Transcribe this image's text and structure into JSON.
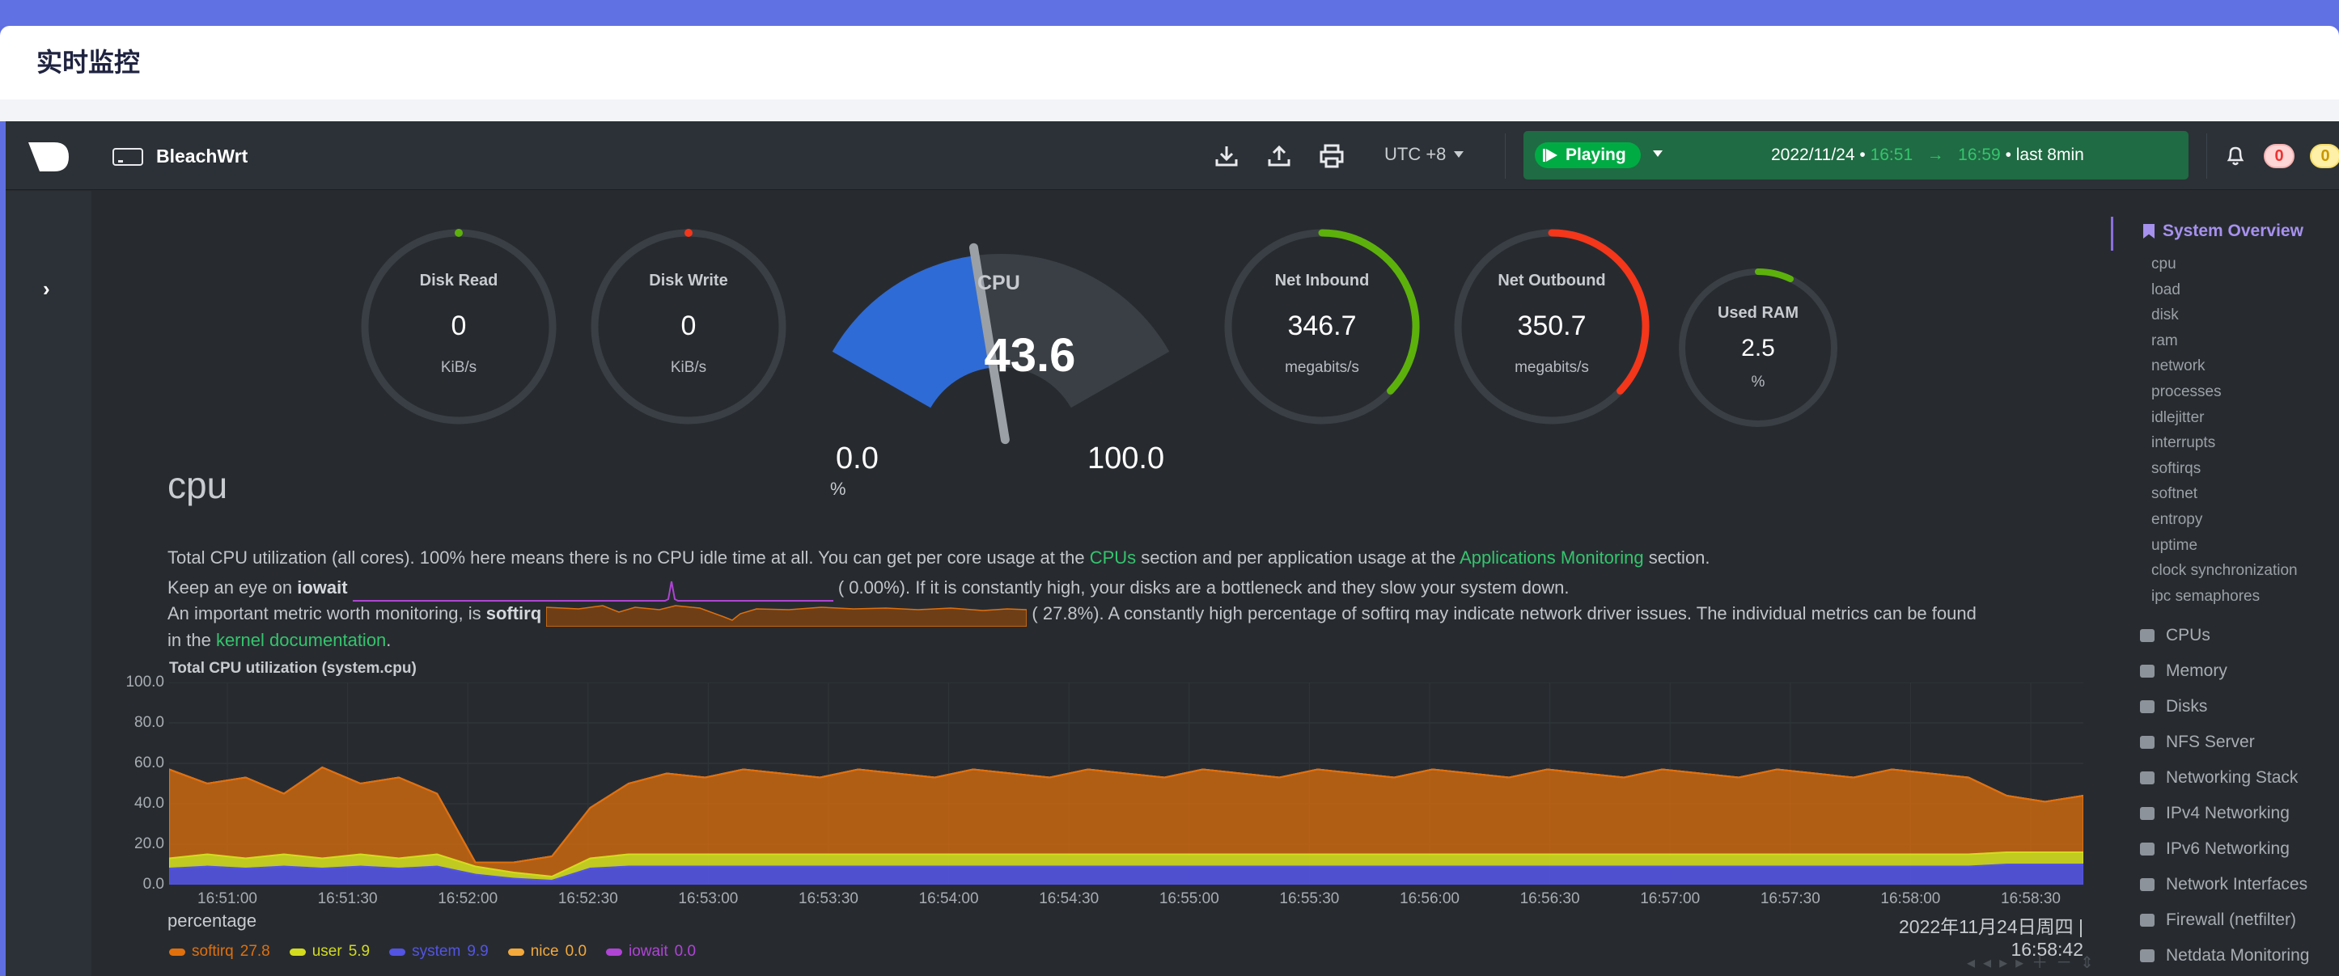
{
  "page": {
    "title": "实时监控"
  },
  "topbar": {
    "hostname": "BleachWrt",
    "timezone": "UTC +8",
    "play_label": "Playing",
    "date": "2022/11/24",
    "time_from": "16:51",
    "time_to": "16:59",
    "period": "• last 8min",
    "alerts_critical": "0",
    "alerts_warning": "0"
  },
  "gauges": {
    "disk_read": {
      "label": "Disk Read",
      "value": "0",
      "unit": "KiB/s",
      "fraction": 0
    },
    "disk_write": {
      "label": "Disk Write",
      "value": "0",
      "unit": "KiB/s",
      "fraction": 0
    },
    "cpu": {
      "label": "CPU",
      "value": "43.6",
      "min": "0.0",
      "max": "100.0",
      "unit": "%",
      "fraction": 0.436
    },
    "net_inbound": {
      "label": "Net Inbound",
      "value": "346.7",
      "unit": "megabits/s",
      "fraction": 0.37
    },
    "net_outbound": {
      "label": "Net Outbound",
      "value": "350.7",
      "unit": "megabits/s",
      "fraction": 0.37
    },
    "used_ram": {
      "label": "Used RAM",
      "value": "2.5",
      "unit": "%",
      "fraction": 0.025
    }
  },
  "colors": {
    "softirq": "#e0700c",
    "user": "#d3db1f",
    "system": "#5354e2",
    "nice": "#f3a93b",
    "iowait": "#b044d5",
    "accent": "#35c46d",
    "cpu_gauge": "#2f6bd6",
    "net_in": "#5db10b",
    "net_out": "#f4361a"
  },
  "section": {
    "title": "cpu",
    "p1_a": "Total CPU utilization (all cores). 100% here means there is no CPU idle time at all. You can get per core usage at the ",
    "p1_link1": "CPUs",
    "p1_b": " section and per application usage at the ",
    "p1_link2": "Applications Monitoring",
    "p1_c": " section.",
    "p2_a": "Keep an eye on ",
    "p2_b": "iowait",
    "p2_val": "(      0.00%). If it is constantly high, your disks are a bottleneck and they slow your system down.",
    "p3_a": "An important metric worth monitoring, is ",
    "p3_b": "softirq",
    "p3_val": "(      27.8%). A constantly high percentage of softirq may indicate network driver issues. The individual metrics can be found",
    "p4_a": "in the ",
    "p4_link": "kernel documentation",
    "p4_b": "."
  },
  "chart_data": {
    "type": "area",
    "title": "Total CPU utilization (system.cpu)",
    "ylabel": "percentage",
    "ylim": [
      0,
      100
    ],
    "yticks": [
      "100.0",
      "80.0",
      "60.0",
      "40.0",
      "20.0",
      "0.0"
    ],
    "xticks": [
      "16:51:00",
      "16:51:30",
      "16:52:00",
      "16:52:30",
      "16:53:00",
      "16:53:30",
      "16:54:00",
      "16:54:30",
      "16:55:00",
      "16:55:30",
      "16:56:00",
      "16:56:30",
      "16:57:00",
      "16:57:30",
      "16:58:00",
      "16:58:30"
    ],
    "x_start": "16:50:55",
    "x_end": "16:58:42",
    "stacked": true,
    "series": [
      {
        "name": "system",
        "values": [
          8,
          9,
          8,
          9,
          8,
          9,
          8,
          9,
          5,
          3,
          2,
          8,
          9,
          9,
          9,
          9,
          9,
          9,
          9,
          9,
          9,
          9,
          9,
          9,
          9,
          9,
          9,
          9,
          9,
          9,
          9,
          9,
          9,
          9,
          9,
          9,
          9,
          9,
          9,
          9,
          9,
          9,
          9,
          9,
          9,
          9,
          9,
          9,
          10,
          10,
          10
        ]
      },
      {
        "name": "user",
        "values": [
          5,
          6,
          5,
          6,
          5,
          6,
          5,
          6,
          4,
          3,
          2,
          5,
          6,
          6,
          6,
          6,
          6,
          6,
          6,
          6,
          6,
          6,
          6,
          6,
          6,
          6,
          6,
          6,
          6,
          6,
          6,
          6,
          6,
          6,
          6,
          6,
          6,
          6,
          6,
          6,
          6,
          6,
          6,
          6,
          6,
          6,
          6,
          6,
          6,
          6,
          6
        ]
      },
      {
        "name": "softirq",
        "values": [
          44,
          35,
          40,
          30,
          45,
          35,
          40,
          30,
          2,
          5,
          10,
          25,
          35,
          40,
          38,
          42,
          40,
          38,
          42,
          40,
          38,
          42,
          40,
          38,
          42,
          40,
          38,
          42,
          40,
          38,
          42,
          40,
          38,
          42,
          40,
          38,
          42,
          40,
          38,
          42,
          40,
          38,
          42,
          40,
          38,
          42,
          40,
          38,
          28,
          25,
          28
        ]
      },
      {
        "name": "nice",
        "values": [
          0,
          0,
          0,
          0,
          0,
          0,
          0,
          0,
          0,
          0,
          0,
          0,
          0,
          0,
          0,
          0,
          0,
          0,
          0,
          0,
          0,
          0,
          0,
          0,
          0,
          0,
          0,
          0,
          0,
          0,
          0,
          0,
          0,
          0,
          0,
          0,
          0,
          0,
          0,
          0,
          0,
          0,
          0,
          0,
          0,
          0,
          0,
          0,
          0,
          0,
          0
        ]
      },
      {
        "name": "iowait",
        "values": [
          0,
          0,
          0,
          0,
          0,
          0,
          0,
          0,
          0,
          0,
          0,
          0,
          0,
          0,
          0,
          0,
          0,
          0,
          0,
          0,
          0,
          0,
          0,
          0,
          0,
          0,
          0,
          0,
          0,
          0,
          0,
          0,
          0,
          0,
          0,
          0,
          0,
          0,
          0,
          0,
          0,
          0,
          0,
          0,
          0,
          0,
          0,
          0,
          0,
          0,
          0
        ]
      }
    ],
    "legend": [
      {
        "name": "softirq",
        "value": "27.8"
      },
      {
        "name": "user",
        "value": "5.9"
      },
      {
        "name": "system",
        "value": "9.9"
      },
      {
        "name": "nice",
        "value": "0.0"
      },
      {
        "name": "iowait",
        "value": "0.0"
      }
    ],
    "timestamp": "2022年11月24日周四 | 16:58:42"
  },
  "sidebar": {
    "overview": "System Overview",
    "overview_items": [
      "cpu",
      "load",
      "disk",
      "ram",
      "network",
      "processes",
      "idlejitter",
      "interrupts",
      "softirqs",
      "softnet",
      "entropy",
      "uptime",
      "clock synchronization",
      "ipc semaphores"
    ],
    "sections": [
      {
        "label": "CPUs",
        "icon": "bolt-icon"
      },
      {
        "label": "Memory",
        "icon": "memory-icon"
      },
      {
        "label": "Disks",
        "icon": "hdd-icon"
      },
      {
        "label": "NFS Server",
        "icon": "folder-icon"
      },
      {
        "label": "Networking Stack",
        "icon": "cloud-icon"
      },
      {
        "label": "IPv4 Networking",
        "icon": "cloud-icon"
      },
      {
        "label": "IPv6 Networking",
        "icon": "cloud-icon"
      },
      {
        "label": "Network Interfaces",
        "icon": "sitemap-icon"
      },
      {
        "label": "Firewall (netfilter)",
        "icon": "shield-icon"
      },
      {
        "label": "Netdata Monitoring",
        "icon": "chart-icon"
      }
    ]
  }
}
